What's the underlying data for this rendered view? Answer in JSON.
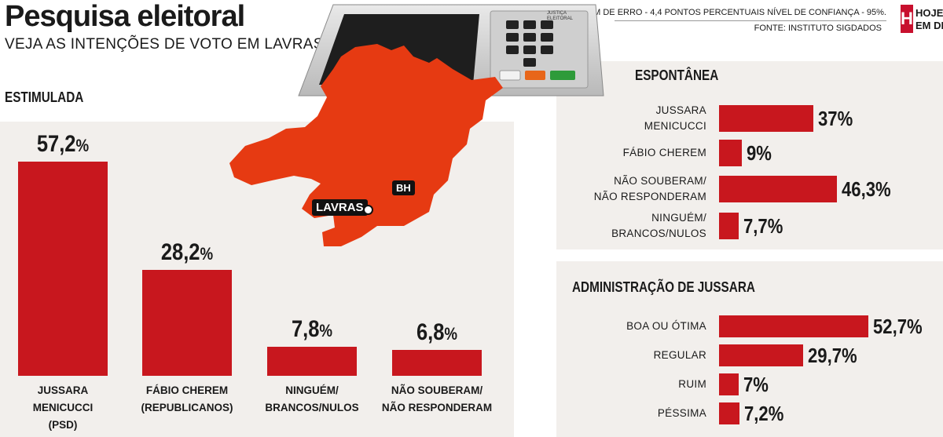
{
  "header": {
    "title": "Pesquisa eleitoral",
    "subtitle": "VEJA AS INTENÇÕES DE VOTO EM LAVRAS",
    "margin_note": "MARGEM DE ERRO - 4,4 PONTOS PERCENTUAIS NÍVEL DE CONFIANÇA - 95%.",
    "source_note": "FONTE: INSTITUTO SIGDADOS",
    "logo": {
      "letter": "H",
      "line1": "HOJE",
      "line2": "EM DIA"
    }
  },
  "urn": {
    "label_line1": "JUSTIÇA",
    "label_line2": "ELEITORAL",
    "keys": [
      "1",
      "2",
      "3",
      "4",
      "5",
      "6",
      "7",
      "8",
      "9",
      "0"
    ],
    "buttons": [
      "BRANCO",
      "CORRIGE",
      "CONFIRMA"
    ]
  },
  "map": {
    "city_lavras": "LAVRAS",
    "city_bh": "BH",
    "fill_color": "#e63a12"
  },
  "colors": {
    "bar": "#c8171e",
    "panel": "#f2efec"
  },
  "chart_data": [
    {
      "type": "bar",
      "title": "ESTIMULADA",
      "categories": [
        "JUSSARA\nMENICUCCI\n(PSD)",
        "FÁBIO CHEREM\n(REPUBLICANOS)",
        "NINGUÉM/\nBRANCOS/NULOS",
        "NÃO SOUBERAM/\nNÃO RESPONDERAM"
      ],
      "values": [
        57.2,
        28.2,
        7.8,
        6.8
      ],
      "value_labels": [
        "57,2",
        "28,2",
        "7,8",
        "6,8"
      ],
      "unit": "%"
    },
    {
      "type": "bar",
      "orientation": "horizontal",
      "title": "ESPONTÂNEA",
      "categories": [
        "JUSSARA\nMENICUCCI",
        "FÁBIO CHEREM",
        "NÃO SOUBERAM/\nNÃO RESPONDERAM",
        "NINGUÉM/\nBRANCOS/NULOS"
      ],
      "values": [
        37,
        9,
        46.3,
        7.7
      ],
      "value_labels": [
        "37%",
        "9%",
        "46,3%",
        "7,7%"
      ]
    },
    {
      "type": "bar",
      "orientation": "horizontal",
      "title": "ADMINISTRAÇÃO DE JUSSARA",
      "categories": [
        "BOA OU ÓTIMA",
        "REGULAR",
        "RUIM",
        "PÉSSIMA"
      ],
      "values": [
        52.7,
        29.7,
        7,
        7.2
      ],
      "value_labels": [
        "52,7%",
        "29,7%",
        "7%",
        "7,2%"
      ]
    }
  ]
}
